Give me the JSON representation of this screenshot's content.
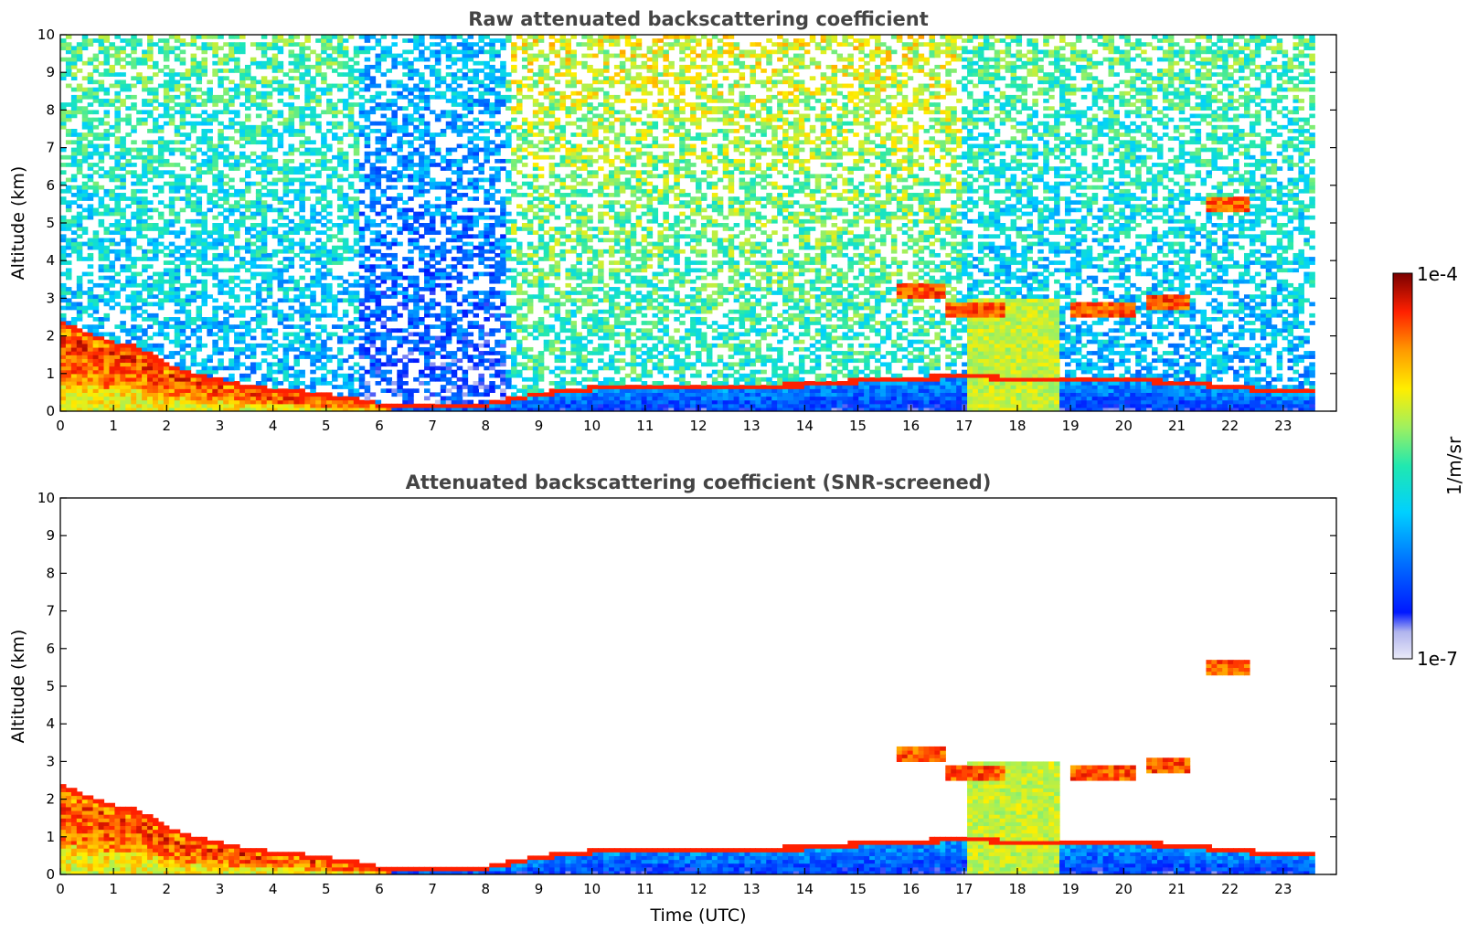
{
  "chart_data": [
    {
      "type": "heatmap",
      "title": "Raw attenuated backscattering coefficient",
      "xlabel": "",
      "ylabel": "Altitude (km)",
      "xlim": [
        0,
        24
      ],
      "ylim": [
        0,
        10
      ],
      "xticks": [
        "0",
        "1",
        "2",
        "3",
        "4",
        "5",
        "6",
        "7",
        "8",
        "9",
        "10",
        "11",
        "12",
        "13",
        "14",
        "15",
        "16",
        "17",
        "18",
        "19",
        "20",
        "21",
        "22",
        "23"
      ],
      "yticks": [
        "0",
        "1",
        "2",
        "3",
        "4",
        "5",
        "6",
        "7",
        "8",
        "9",
        "10"
      ],
      "grid": false,
      "data_end_hour": 23.55,
      "features": {
        "boundary_layer_top_km": [
          [
            0,
            2.3
          ],
          [
            0.5,
            2.0
          ],
          [
            1,
            1.75
          ],
          [
            1.5,
            1.6
          ],
          [
            2,
            1.15
          ],
          [
            2.5,
            0.9
          ],
          [
            3,
            0.75
          ],
          [
            3.5,
            0.6
          ],
          [
            4,
            0.5
          ],
          [
            4.5,
            0.45
          ],
          [
            5,
            0.35
          ],
          [
            5.5,
            0.25
          ],
          [
            6,
            0.12
          ],
          [
            7,
            0.1
          ],
          [
            8,
            0.12
          ],
          [
            8.5,
            0.25
          ],
          [
            9,
            0.4
          ],
          [
            10,
            0.55
          ],
          [
            11,
            0.6
          ],
          [
            12,
            0.6
          ],
          [
            13,
            0.6
          ],
          [
            14,
            0.65
          ],
          [
            15,
            0.75
          ],
          [
            16,
            0.8
          ],
          [
            17,
            0.9
          ],
          [
            18,
            0.8
          ],
          [
            19,
            0.75
          ],
          [
            20,
            0.8
          ],
          [
            21,
            0.7
          ],
          [
            22,
            0.6
          ],
          [
            23,
            0.45
          ],
          [
            23.5,
            0.5
          ]
        ],
        "cloud_layers": [
          {
            "start": 15.7,
            "end": 16.6,
            "altitude_km": 3.2
          },
          {
            "start": 16.6,
            "end": 17.8,
            "altitude_km": 2.7
          },
          {
            "start": 19.0,
            "end": 20.2,
            "altitude_km": 2.7
          },
          {
            "start": 20.4,
            "end": 21.2,
            "altitude_km": 2.9
          },
          {
            "start": 21.6,
            "end": 22.4,
            "altitude_km": 5.5
          }
        ]
      }
    },
    {
      "type": "heatmap",
      "title": "Attenuated backscattering coefficient (SNR-screened)",
      "xlabel": "Time (UTC)",
      "ylabel": "Altitude (km)",
      "xlim": [
        0,
        24
      ],
      "ylim": [
        0,
        10
      ],
      "xticks": [
        "0",
        "1",
        "2",
        "3",
        "4",
        "5",
        "6",
        "7",
        "8",
        "9",
        "10",
        "11",
        "12",
        "13",
        "14",
        "15",
        "16",
        "17",
        "18",
        "19",
        "20",
        "21",
        "22",
        "23"
      ],
      "yticks": [
        "0",
        "1",
        "2",
        "3",
        "4",
        "5",
        "6",
        "7",
        "8",
        "9",
        "10"
      ],
      "grid": false,
      "data_end_hour": 23.55
    }
  ],
  "colorbar": {
    "label": "1/m/sr",
    "min_label": "1e-7",
    "max_label": "1e-4",
    "scale": "log",
    "colormap": "jet",
    "colors": [
      "#eaeaf8",
      "#b0b4ee",
      "#0018ff",
      "#0070ff",
      "#00d0ff",
      "#20e8b0",
      "#9ef060",
      "#ffee00",
      "#ff9a00",
      "#ff2000",
      "#7a0000"
    ]
  }
}
